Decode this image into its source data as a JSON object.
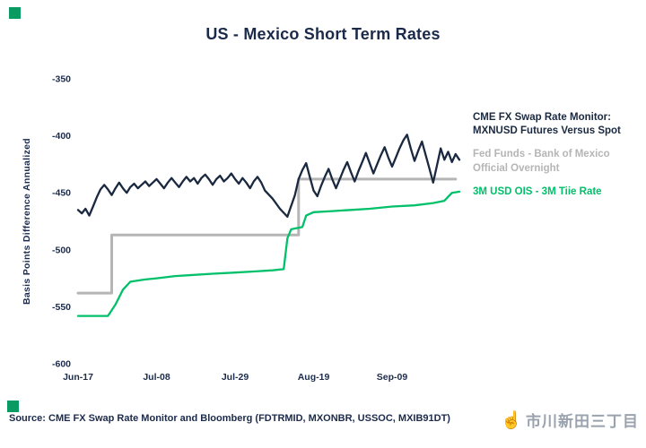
{
  "page": {
    "title": "US - Mexico Short Term Rates",
    "source": "Source: CME FX Swap Rate Monitor and Bloomberg (FDTRMID, MXONBR, USSOC, MXIB91DT)",
    "watermark": {
      "icon": "☝",
      "text": "市川新田三丁目"
    },
    "accent_square_color": "#0a9b63"
  },
  "chart_data": {
    "type": "line",
    "title": "US - Mexico Short Term Rates",
    "xlabel": "",
    "ylabel": "Basis Points Difference Annualized",
    "ylim": [
      -600,
      -350
    ],
    "y_ticks": [
      -350,
      -400,
      -450,
      -500,
      -550,
      -600
    ],
    "x_ticks": [
      {
        "label": "Jun-17",
        "day": 0
      },
      {
        "label": "Jul-08",
        "day": 21
      },
      {
        "label": "Jul-29",
        "day": 42
      },
      {
        "label": "Aug-19",
        "day": 63
      },
      {
        "label": "Sep-09",
        "day": 84
      }
    ],
    "xlim_days": [
      0,
      102
    ],
    "grid": false,
    "legend_position": "right",
    "series": [
      {
        "name": "CME FX Swap Rate Monitor: MXNUSD Futures Versus Spot",
        "color": "#1a2940",
        "width": 2.3,
        "points": [
          [
            0,
            -465
          ],
          [
            1,
            -468
          ],
          [
            2,
            -464
          ],
          [
            3,
            -470
          ],
          [
            4,
            -462
          ],
          [
            5,
            -454
          ],
          [
            6,
            -447
          ],
          [
            7,
            -443
          ],
          [
            8,
            -447
          ],
          [
            9,
            -452
          ],
          [
            10,
            -446
          ],
          [
            11,
            -441
          ],
          [
            12,
            -446
          ],
          [
            13,
            -450
          ],
          [
            14,
            -445
          ],
          [
            15,
            -442
          ],
          [
            16,
            -446
          ],
          [
            17,
            -443
          ],
          [
            18,
            -440
          ],
          [
            19,
            -444
          ],
          [
            20,
            -441
          ],
          [
            21,
            -438
          ],
          [
            22,
            -442
          ],
          [
            23,
            -446
          ],
          [
            24,
            -441
          ],
          [
            25,
            -437
          ],
          [
            26,
            -441
          ],
          [
            27,
            -445
          ],
          [
            28,
            -440
          ],
          [
            29,
            -436
          ],
          [
            30,
            -440
          ],
          [
            31,
            -437
          ],
          [
            32,
            -442
          ],
          [
            33,
            -437
          ],
          [
            34,
            -434
          ],
          [
            35,
            -438
          ],
          [
            36,
            -443
          ],
          [
            37,
            -438
          ],
          [
            38,
            -435
          ],
          [
            39,
            -440
          ],
          [
            40,
            -437
          ],
          [
            41,
            -433
          ],
          [
            42,
            -438
          ],
          [
            43,
            -442
          ],
          [
            44,
            -437
          ],
          [
            45,
            -441
          ],
          [
            46,
            -446
          ],
          [
            47,
            -440
          ],
          [
            48,
            -436
          ],
          [
            49,
            -441
          ],
          [
            50,
            -448
          ],
          [
            52,
            -455
          ],
          [
            54,
            -464
          ],
          [
            56,
            -471
          ],
          [
            58,
            -452
          ],
          [
            59,
            -438
          ],
          [
            60,
            -430
          ],
          [
            61,
            -424
          ],
          [
            62,
            -436
          ],
          [
            63,
            -448
          ],
          [
            64,
            -453
          ],
          [
            65,
            -444
          ],
          [
            66,
            -436
          ],
          [
            67,
            -429
          ],
          [
            68,
            -438
          ],
          [
            69,
            -446
          ],
          [
            70,
            -438
          ],
          [
            71,
            -430
          ],
          [
            72,
            -423
          ],
          [
            73,
            -432
          ],
          [
            74,
            -440
          ],
          [
            75,
            -431
          ],
          [
            76,
            -423
          ],
          [
            77,
            -415
          ],
          [
            78,
            -424
          ],
          [
            79,
            -433
          ],
          [
            80,
            -425
          ],
          [
            81,
            -417
          ],
          [
            82,
            -410
          ],
          [
            83,
            -419
          ],
          [
            84,
            -427
          ],
          [
            85,
            -419
          ],
          [
            86,
            -411
          ],
          [
            87,
            -404
          ],
          [
            88,
            -399
          ],
          [
            89,
            -411
          ],
          [
            90,
            -422
          ],
          [
            91,
            -413
          ],
          [
            92,
            -405
          ],
          [
            93,
            -417
          ],
          [
            94,
            -429
          ],
          [
            95,
            -441
          ],
          [
            96,
            -426
          ],
          [
            97,
            -411
          ],
          [
            98,
            -421
          ],
          [
            99,
            -414
          ],
          [
            100,
            -423
          ],
          [
            101,
            -416
          ],
          [
            102,
            -421
          ]
        ]
      },
      {
        "name": "Fed Funds - Bank of Mexico Official Overnight",
        "color": "#b5b5b5",
        "width": 3,
        "points": [
          [
            0,
            -538
          ],
          [
            9,
            -538
          ],
          [
            9,
            -487
          ],
          [
            59,
            -487
          ],
          [
            59,
            -438
          ],
          [
            101,
            -438
          ]
        ]
      },
      {
        "name": "3M USD OIS - 3M Tiie Rate",
        "color": "#00c06a",
        "width": 2.3,
        "points": [
          [
            0,
            -558
          ],
          [
            8,
            -558
          ],
          [
            10,
            -548
          ],
          [
            12,
            -535
          ],
          [
            14,
            -528
          ],
          [
            18,
            -526
          ],
          [
            21,
            -525
          ],
          [
            26,
            -523
          ],
          [
            31,
            -522
          ],
          [
            36,
            -521
          ],
          [
            42,
            -520
          ],
          [
            47,
            -519
          ],
          [
            52,
            -518
          ],
          [
            55,
            -517
          ],
          [
            56,
            -490
          ],
          [
            57,
            -482
          ],
          [
            60,
            -480
          ],
          [
            61,
            -470
          ],
          [
            63,
            -467
          ],
          [
            68,
            -466
          ],
          [
            73,
            -465
          ],
          [
            78,
            -464
          ],
          [
            84,
            -462
          ],
          [
            90,
            -461
          ],
          [
            95,
            -459
          ],
          [
            98,
            -457
          ],
          [
            100,
            -450
          ],
          [
            102,
            -449
          ]
        ]
      }
    ]
  }
}
